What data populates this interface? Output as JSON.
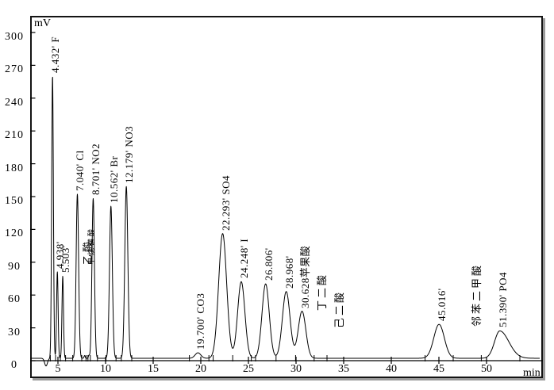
{
  "y_axis": {
    "label": "mV",
    "ticks": [
      0,
      30,
      60,
      90,
      120,
      150,
      180,
      210,
      240,
      270,
      300
    ]
  },
  "x_axis": {
    "label": "min",
    "ticks": [
      5,
      10,
      15,
      20,
      25,
      30,
      35,
      40,
      45,
      50
    ]
  },
  "chart_data": {
    "type": "line",
    "description": "ion chromatography chromatogram, detector signal (mV) vs retention time (min)",
    "xlabel": "min",
    "ylabel": "mV",
    "xlim": [
      2.1,
      55.6
    ],
    "ylim": [
      0,
      300
    ],
    "line_color": "#000000",
    "background_color": "#ffffff",
    "baseline_mv": 2.2,
    "baseline_dip": {
      "t_min": 3.75,
      "depth_mv": 7,
      "sigma_min": 0.15
    },
    "peaks": [
      {
        "rt_min": 4.432,
        "label": "4.432' F",
        "analyte": "F",
        "height_mv": 258,
        "sigma_min": 0.09
      },
      {
        "rt_min": 4.938,
        "label": "4.938'",
        "analyte": "",
        "height_mv": 79,
        "sigma_min": 0.08
      },
      {
        "rt_min": 5.503,
        "label": "5.503'",
        "analyte": "",
        "height_mv": 75,
        "sigma_min": 0.08
      },
      {
        "rt_min": 7.04,
        "label": "7.040' Cl",
        "analyte": "Cl",
        "height_mv": 150,
        "sigma_min": 0.13
      },
      {
        "rt_min": 7.8,
        "label": "",
        "analyte": "乙酸",
        "height_mv": 2.5,
        "sigma_min": 0.06
      },
      {
        "rt_min": 8.25,
        "label": "",
        "analyte": "甲烷磺酸",
        "height_mv": 2.5,
        "sigma_min": 0.06
      },
      {
        "rt_min": 8.701,
        "label": "8.701' NO2",
        "analyte": "NO2",
        "height_mv": 146,
        "sigma_min": 0.13
      },
      {
        "rt_min": 10.562,
        "label": "10.562' Br",
        "analyte": "Br",
        "height_mv": 139,
        "sigma_min": 0.15
      },
      {
        "rt_min": 12.179,
        "label": "12.179' NO3",
        "analyte": "NO3",
        "height_mv": 157,
        "sigma_min": 0.16
      },
      {
        "rt_min": 19.7,
        "label": "19.700' CO3",
        "analyte": "CO3",
        "height_mv": 5,
        "sigma_min": 0.3
      },
      {
        "rt_min": 22.293,
        "label": "22.293' SO4",
        "analyte": "SO4",
        "height_mv": 114,
        "sigma_min": 0.42
      },
      {
        "rt_min": 24.248,
        "label": "24.248' I",
        "analyte": "I",
        "height_mv": 70,
        "sigma_min": 0.38
      },
      {
        "rt_min": 26.806,
        "label": "26.806'",
        "analyte": "",
        "height_mv": 68,
        "sigma_min": 0.38
      },
      {
        "rt_min": 28.968,
        "label": "28.968'",
        "analyte": "",
        "height_mv": 61,
        "sigma_min": 0.4
      },
      {
        "rt_min": 30.628,
        "label": "30.628苹果酸",
        "analyte": "苹果酸",
        "height_mv": 43,
        "sigma_min": 0.4
      },
      {
        "rt_min": 45.016,
        "label": "45.016'",
        "analyte": "",
        "height_mv": 31,
        "sigma_min": 0.55
      },
      {
        "rt_min": 51.39,
        "label": "51.390' PO4",
        "analyte": "PO4",
        "height_mv": 25,
        "sigma_min": 0.55,
        "sigma_right_min": 0.95
      }
    ],
    "annotations": [
      {
        "text": "乙酸",
        "x_min": 7.85,
        "bottom_mv": 88,
        "size": "normal"
      },
      {
        "text": "甲烷磺酸",
        "x_min": 8.45,
        "bottom_mv": 88,
        "size": "small"
      },
      {
        "text": "丁二酸",
        "x_min": 32.4,
        "bottom_mv": 46,
        "size": "normal"
      },
      {
        "text": "己二酸",
        "x_min": 34.25,
        "bottom_mv": 30,
        "size": "normal"
      },
      {
        "text": "邻苯二甲酸",
        "x_min": 48.7,
        "bottom_mv": 31,
        "size": "normal"
      }
    ],
    "integration_markers_min": [
      4.2,
      4.75,
      5.25,
      5.8,
      6.55,
      7.5,
      7.95,
      8.15,
      8.4,
      9.15,
      10.05,
      11.1,
      11.65,
      12.75,
      18.8,
      20.85,
      21.3,
      23.35,
      25.3,
      25.75,
      27.9,
      29.95,
      31.9,
      33.25,
      43.55,
      46.5,
      49.45,
      53.5
    ]
  }
}
